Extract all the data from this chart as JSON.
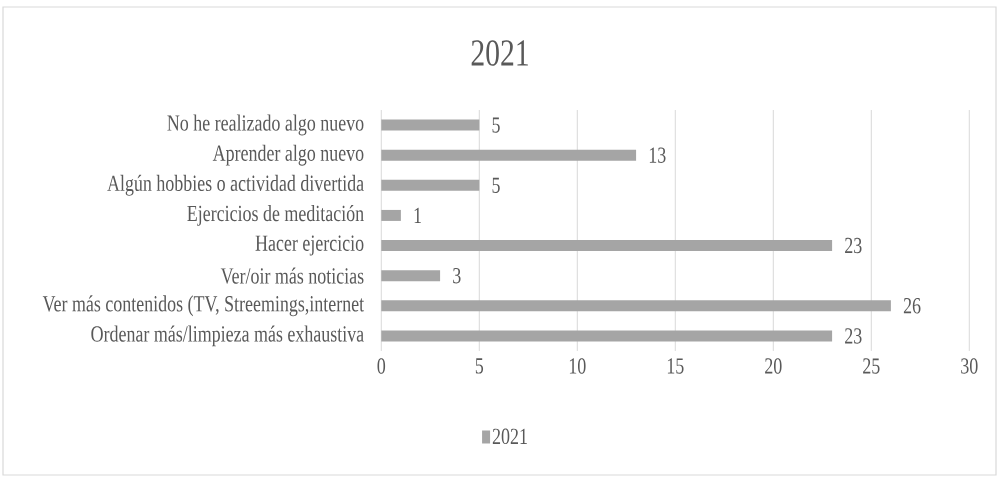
{
  "chart_data": {
    "type": "bar",
    "orientation": "horizontal",
    "title": "2021",
    "categories": [
      "No he realizado algo nuevo",
      "Aprender algo nuevo",
      "Algún hobbies o actividad divertida",
      "Ejercicios de meditación",
      "Hacer ejercicio",
      "Ver/oir más noticias",
      "Ver más contenidos (TV, Streemings,internet",
      "Ordenar más/limpieza más exhaustiva"
    ],
    "series": [
      {
        "name": "2021",
        "color": "#a5a5a5",
        "values": [
          5,
          13,
          5,
          1,
          23,
          3,
          26,
          23
        ]
      }
    ],
    "xlim": [
      0,
      30
    ],
    "xticks": [
      0,
      5,
      10,
      15,
      20,
      25,
      30
    ],
    "grid": "x",
    "legend": "bottom",
    "data_labels": true
  }
}
